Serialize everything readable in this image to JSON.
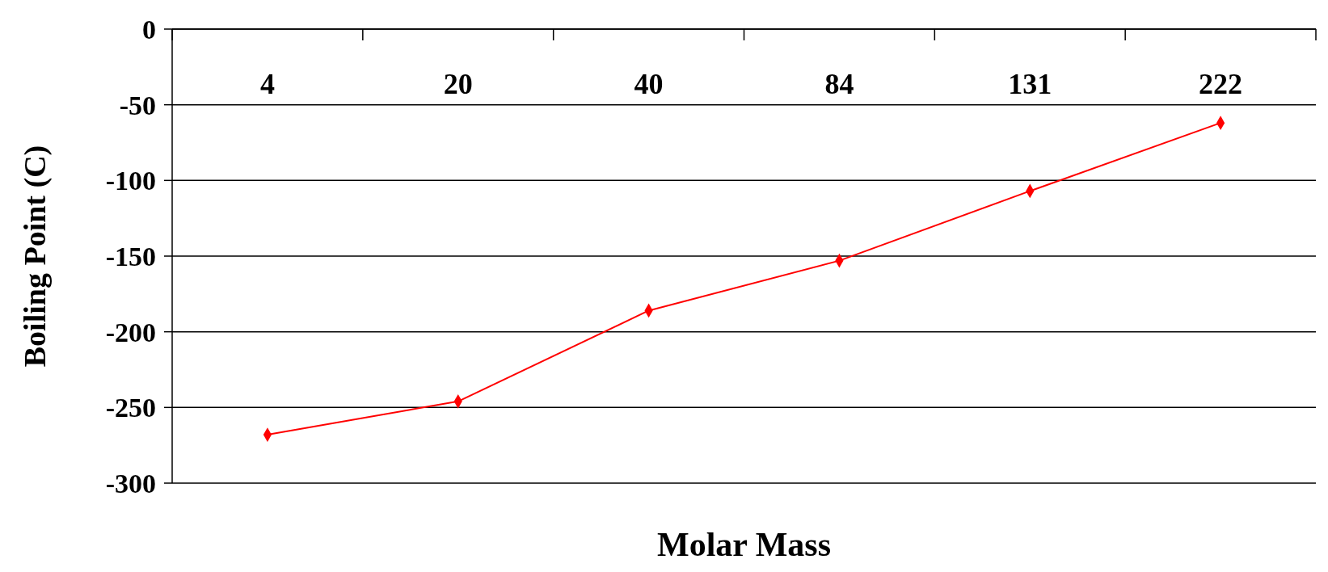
{
  "chart_data": {
    "type": "line",
    "xlabel": "Molar Mass",
    "ylabel": "Boiling Point (C)",
    "categories": [
      "4",
      "20",
      "40",
      "84",
      "131",
      "222"
    ],
    "series": [
      {
        "color": "#ff0000",
        "values": [
          -268,
          -246,
          -186,
          -153,
          -107,
          -62
        ]
      }
    ],
    "ylim": [
      -300,
      0
    ],
    "yticks": [
      -300,
      -250,
      -200,
      -150,
      -100,
      -50,
      0
    ],
    "grid": "y",
    "marker": "diamond",
    "line_style": "solid"
  }
}
